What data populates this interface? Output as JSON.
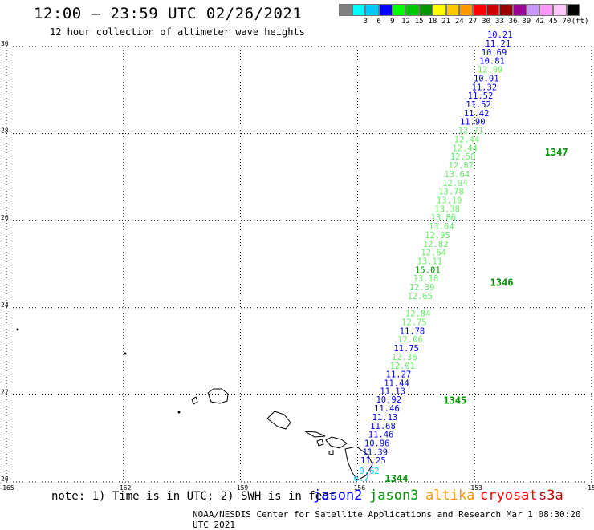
{
  "header": {
    "title": "12:00 – 23:59 UTC 02/26/2021",
    "subtitle": "12 hour collection of altimeter wave heights"
  },
  "legend": {
    "unit": "(ft)",
    "bins": [
      {
        "label": "",
        "color": "#808080"
      },
      {
        "label": "3",
        "color": "#00ffff"
      },
      {
        "label": "6",
        "color": "#00c8ff"
      },
      {
        "label": "9",
        "color": "#0000ff"
      },
      {
        "label": "12",
        "color": "#00ff00"
      },
      {
        "label": "15",
        "color": "#00c800"
      },
      {
        "label": "18",
        "color": "#009600"
      },
      {
        "label": "21",
        "color": "#ffff00"
      },
      {
        "label": "24",
        "color": "#ffc800"
      },
      {
        "label": "27",
        "color": "#ff9600"
      },
      {
        "label": "30",
        "color": "#ff0000"
      },
      {
        "label": "33",
        "color": "#c80000"
      },
      {
        "label": "36",
        "color": "#960000"
      },
      {
        "label": "39",
        "color": "#960096"
      },
      {
        "label": "42",
        "color": "#c896ff"
      },
      {
        "label": "45",
        "color": "#ff96ff"
      },
      {
        "label": "70",
        "color": "#ffc8ff"
      },
      {
        "label": "",
        "color": "#000000"
      }
    ]
  },
  "map": {
    "lon_range": [
      -165,
      -150
    ],
    "lat_range": [
      20,
      30
    ],
    "lon_ticks": [
      "-165",
      "-162",
      "-159",
      "-156",
      "-153",
      "-150"
    ],
    "lat_ticks": [
      "30",
      "28",
      "26",
      "24",
      "22",
      "20"
    ]
  },
  "footer": {
    "note": "note: 1) Time is in UTC; 2) SWH is in feet",
    "satellites": [
      {
        "name": "jason2",
        "color": "#0000ff"
      },
      {
        "name": "jason3",
        "color": "#009600"
      },
      {
        "name": "altika",
        "color": "#ff9600"
      },
      {
        "name": "cryosat",
        "color": "#ff0000"
      },
      {
        "name": "s3a",
        "color": "#c80000"
      }
    ],
    "credit": "NOAA/NESDIS Center for Satellite Applications and Research   Mar  1 08:30:20 UTC 2021"
  },
  "chart_data": {
    "type": "scatter",
    "title": "12:00 – 23:59 UTC 02/26/2021",
    "subtitle": "12 hour collection of altimeter wave heights",
    "xlim": [
      -165,
      -150
    ],
    "ylim": [
      20,
      30
    ],
    "grid": true,
    "pass_times": [
      {
        "label": "1344",
        "lon": -155.3,
        "lat": 20.0
      },
      {
        "label": "1345",
        "lon": -153.8,
        "lat": 21.8
      },
      {
        "label": "1346",
        "lon": -152.6,
        "lat": 24.5
      },
      {
        "label": "1347",
        "lon": -151.2,
        "lat": 27.5
      }
    ],
    "observations": [
      {
        "v": "6.7",
        "lon": -155.9,
        "lat": 20.02,
        "c": "#00c8ff"
      },
      {
        "v": "9.62",
        "lon": -155.7,
        "lat": 20.18,
        "c": "#00c8ff"
      },
      {
        "v": "11.25",
        "lon": -155.6,
        "lat": 20.42,
        "c": "#0000ff"
      },
      {
        "v": "11.39",
        "lon": -155.55,
        "lat": 20.62,
        "c": "#0000ff"
      },
      {
        "v": "10.96",
        "lon": -155.5,
        "lat": 20.82,
        "c": "#0000ff"
      },
      {
        "v": "11.46",
        "lon": -155.4,
        "lat": 21.02,
        "c": "#0000ff"
      },
      {
        "v": "11.68",
        "lon": -155.35,
        "lat": 21.22,
        "c": "#0000ff"
      },
      {
        "v": "11.13",
        "lon": -155.3,
        "lat": 21.42,
        "c": "#0000ff"
      },
      {
        "v": "11.46",
        "lon": -155.25,
        "lat": 21.62,
        "c": "#0000ff"
      },
      {
        "v": "10.92",
        "lon": -155.2,
        "lat": 21.82,
        "c": "#0000ff"
      },
      {
        "v": "11.13",
        "lon": -155.1,
        "lat": 22.02,
        "c": "#0000ff"
      },
      {
        "v": "11.44",
        "lon": -155.0,
        "lat": 22.2,
        "c": "#0000ff"
      },
      {
        "v": "11.27",
        "lon": -154.95,
        "lat": 22.4,
        "c": "#0000ff"
      },
      {
        "v": "12.01",
        "lon": -154.85,
        "lat": 22.6,
        "c": "#66ee66"
      },
      {
        "v": "12.36",
        "lon": -154.8,
        "lat": 22.8,
        "c": "#66ee66"
      },
      {
        "v": "11.75",
        "lon": -154.75,
        "lat": 23.0,
        "c": "#0000ff"
      },
      {
        "v": "12.06",
        "lon": -154.65,
        "lat": 23.2,
        "c": "#66ee66"
      },
      {
        "v": "11.78",
        "lon": -154.6,
        "lat": 23.4,
        "c": "#0000ff"
      },
      {
        "v": "12.75",
        "lon": -154.55,
        "lat": 23.6,
        "c": "#66ee66"
      },
      {
        "v": "12.84",
        "lon": -154.45,
        "lat": 23.8,
        "c": "#66ee66"
      },
      {
        "v": "12.65",
        "lon": -154.4,
        "lat": 24.2,
        "c": "#66ee66"
      },
      {
        "v": "12.39",
        "lon": -154.35,
        "lat": 24.4,
        "c": "#66ee66"
      },
      {
        "v": "13.18",
        "lon": -154.25,
        "lat": 24.6,
        "c": "#66ee66"
      },
      {
        "v": "15.01",
        "lon": -154.2,
        "lat": 24.8,
        "c": "#009600"
      },
      {
        "v": "13.11",
        "lon": -154.15,
        "lat": 25.0,
        "c": "#66ee66"
      },
      {
        "v": "12.64",
        "lon": -154.05,
        "lat": 25.2,
        "c": "#66ee66"
      },
      {
        "v": "12.82",
        "lon": -154.0,
        "lat": 25.4,
        "c": "#66ee66"
      },
      {
        "v": "12.95",
        "lon": -153.95,
        "lat": 25.6,
        "c": "#66ee66"
      },
      {
        "v": "13.64",
        "lon": -153.85,
        "lat": 25.8,
        "c": "#66ee66"
      },
      {
        "v": "13.86",
        "lon": -153.8,
        "lat": 26.0,
        "c": "#66ee66"
      },
      {
        "v": "13.38",
        "lon": -153.7,
        "lat": 26.2,
        "c": "#66ee66"
      },
      {
        "v": "13.19",
        "lon": -153.65,
        "lat": 26.4,
        "c": "#66ee66"
      },
      {
        "v": "13.78",
        "lon": -153.6,
        "lat": 26.6,
        "c": "#66ee66"
      },
      {
        "v": "12.94",
        "lon": -153.5,
        "lat": 26.8,
        "c": "#66ee66"
      },
      {
        "v": "13.64",
        "lon": -153.45,
        "lat": 27.0,
        "c": "#66ee66"
      },
      {
        "v": "12.87",
        "lon": -153.35,
        "lat": 27.2,
        "c": "#66ee66"
      },
      {
        "v": "12.58",
        "lon": -153.3,
        "lat": 27.4,
        "c": "#66ee66"
      },
      {
        "v": "12.44",
        "lon": -153.25,
        "lat": 27.6,
        "c": "#66ee66"
      },
      {
        "v": "12.44",
        "lon": -153.2,
        "lat": 27.8,
        "c": "#66ee66"
      },
      {
        "v": "12.71",
        "lon": -153.1,
        "lat": 28.0,
        "c": "#66ee66"
      },
      {
        "v": "11.90",
        "lon": -153.05,
        "lat": 28.2,
        "c": "#0000ff"
      },
      {
        "v": "11.42",
        "lon": -152.95,
        "lat": 28.4,
        "c": "#0000ff"
      },
      {
        "v": "11.52",
        "lon": -152.9,
        "lat": 28.6,
        "c": "#0000ff"
      },
      {
        "v": "11.52",
        "lon": -152.85,
        "lat": 28.8,
        "c": "#0000ff"
      },
      {
        "v": "11.32",
        "lon": -152.75,
        "lat": 29.0,
        "c": "#0000ff"
      },
      {
        "v": "10.91",
        "lon": -152.7,
        "lat": 29.2,
        "c": "#0000ff"
      },
      {
        "v": "12.09",
        "lon": -152.6,
        "lat": 29.4,
        "c": "#66ee66"
      },
      {
        "v": "10.81",
        "lon": -152.55,
        "lat": 29.6,
        "c": "#0000ff"
      },
      {
        "v": "10.69",
        "lon": -152.5,
        "lat": 29.8,
        "c": "#0000ff"
      },
      {
        "v": "11.21",
        "lon": -152.4,
        "lat": 30.0,
        "c": "#0000ff"
      },
      {
        "v": "10.21",
        "lon": -152.35,
        "lat": 30.2,
        "c": "#0000ff"
      }
    ]
  }
}
